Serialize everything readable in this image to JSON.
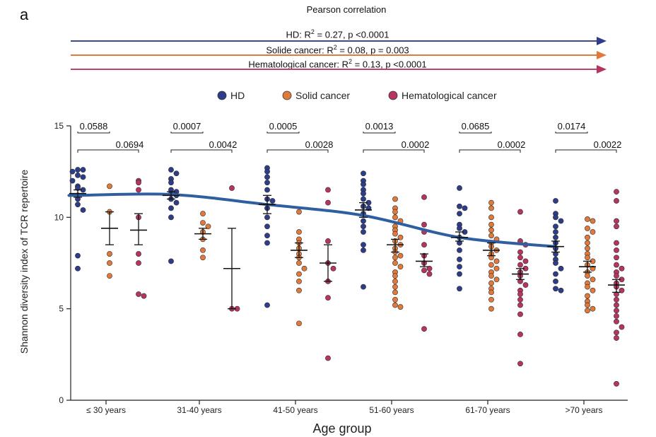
{
  "panel_label": "a",
  "header": {
    "title": "Pearson correlation",
    "stats": [
      {
        "prefix": "HD: R",
        "sup": "2",
        "suffix": " = 0.27,  p <0.0001",
        "color": "#2e3d8a"
      },
      {
        "prefix": "Solide cancer: R",
        "sup": "2",
        "suffix": " = 0.08,  p = 0.003",
        "color": "#e07a3c"
      },
      {
        "prefix": "Hematological cancer: R",
        "sup": "2",
        "suffix": " = 0.13, p <0.0001",
        "color": "#b7345e"
      }
    ]
  },
  "chart_data": {
    "type": "scatter",
    "title": "",
    "xlabel": "Age group",
    "ylabel": "Shannon diversity index of TCR repertoire",
    "ylim": [
      0,
      15
    ],
    "yticks": [
      "0",
      "5",
      "10",
      "15"
    ],
    "categories": [
      "≤ 30 years",
      "31-40 years",
      "41-50 years",
      "51-60 years",
      "61-70 years",
      ">70 years"
    ],
    "legend": {
      "placement": "top-center",
      "entries": [
        "HD",
        "Solid cancer",
        "Hematological cancer"
      ]
    },
    "colors": {
      "HD": "#2e3d8a",
      "Solid cancer": "#e07a3c",
      "Hematological cancer": "#b7345e",
      "trend": "#2f5fa0"
    },
    "series": [
      {
        "name": "HD",
        "groups": [
          {
            "points": [
              12.6,
              12.6,
              12.5,
              12.3,
              12.2,
              12.0,
              11.7,
              11.6,
              11.5,
              11.2,
              11.0,
              10.7,
              10.4,
              7.9,
              7.2
            ],
            "mean": 11.3,
            "err": [
              11.1,
              11.5
            ]
          },
          {
            "points": [
              12.6,
              12.4,
              12.1,
              11.9,
              11.5,
              11.4,
              11.3,
              11.2,
              11.0,
              10.8,
              10.5,
              10.0,
              7.6
            ],
            "mean": 11.2,
            "err": [
              11.0,
              11.4
            ]
          },
          {
            "points": [
              12.7,
              12.5,
              12.2,
              11.9,
              11.5,
              11.0,
              10.9,
              10.5,
              10.0,
              9.5,
              9.0,
              8.6,
              5.2
            ],
            "mean": 10.7,
            "err": [
              10.2,
              11.2
            ]
          },
          {
            "points": [
              12.4,
              12.0,
              11.8,
              11.5,
              11.3,
              11.0,
              10.8,
              10.6,
              10.5,
              10.2,
              9.8,
              9.5,
              9.2,
              8.5,
              8.2,
              6.2
            ],
            "mean": 10.4,
            "err": [
              10.0,
              10.8
            ]
          },
          {
            "points": [
              11.6,
              10.6,
              10.5,
              10.2,
              9.6,
              9.4,
              9.2,
              8.9,
              8.6,
              8.2,
              7.7,
              7.3,
              6.9,
              6.1
            ],
            "mean": 8.9,
            "err": [
              8.7,
              9.2
            ]
          },
          {
            "points": [
              10.9,
              10.2,
              10.0,
              9.8,
              9.5,
              9.2,
              8.9,
              8.6,
              8.3,
              8.0,
              7.7,
              7.5,
              7.2,
              6.9,
              6.5,
              6.1,
              6.0
            ],
            "mean": 8.4,
            "err": [
              8.1,
              8.7
            ]
          }
        ]
      },
      {
        "name": "Solid cancer",
        "groups": [
          {
            "points": [
              11.7,
              10.3,
              8.0,
              7.5,
              6.8
            ],
            "mean": 9.4,
            "err": [
              8.5,
              10.3
            ]
          },
          {
            "points": [
              10.2,
              9.7,
              9.5,
              9.2,
              8.8,
              8.2,
              7.8
            ],
            "mean": 9.1,
            "err": [
              8.8,
              9.4
            ]
          },
          {
            "points": [
              10.3,
              9.2,
              8.8,
              8.6,
              8.3,
              8.0,
              7.8,
              7.5,
              7.2,
              6.9,
              6.5,
              6.0,
              4.2
            ],
            "mean": 8.2,
            "err": [
              7.8,
              8.6
            ]
          },
          {
            "points": [
              11.0,
              10.5,
              10.3,
              10.0,
              9.8,
              9.5,
              9.3,
              9.1,
              8.9,
              8.7,
              8.5,
              8.3,
              8.1,
              7.9,
              7.8,
              7.5,
              7.3,
              7.0,
              6.8,
              6.5,
              6.2,
              5.9,
              5.5,
              5.2,
              5.1
            ],
            "mean": 8.5,
            "err": [
              8.1,
              8.8
            ]
          },
          {
            "points": [
              10.8,
              10.5,
              10.0,
              9.6,
              9.3,
              9.0,
              8.8,
              8.6,
              8.4,
              8.2,
              8.0,
              7.8,
              7.6,
              7.4,
              7.2,
              7.0,
              6.8,
              6.6,
              6.4,
              6.1,
              5.9,
              5.5,
              5.0
            ],
            "mean": 8.2,
            "err": [
              7.9,
              8.6
            ]
          },
          {
            "points": [
              9.9,
              9.8,
              9.4,
              9.2,
              8.9,
              8.6,
              8.3,
              8.0,
              7.8,
              7.6,
              7.4,
              7.2,
              7.0,
              6.8,
              6.6,
              6.4,
              6.2,
              6.0,
              5.7,
              5.4,
              5.2,
              5.0,
              4.9
            ],
            "mean": 7.3,
            "err": [
              7.0,
              7.6
            ]
          }
        ]
      },
      {
        "name": "Hematological cancer",
        "groups": [
          {
            "points": [
              12.0,
              11.9,
              11.5,
              10.0,
              8.0,
              7.5,
              5.8,
              5.7
            ],
            "mean": 9.3,
            "err": [
              8.5,
              10.2
            ]
          },
          {
            "points": [
              11.6,
              5.0,
              5.0
            ],
            "mean": 7.2,
            "err": [
              5.0,
              9.4
            ]
          },
          {
            "points": [
              11.5,
              10.8,
              8.7,
              7.5,
              7.2,
              6.5,
              5.6,
              2.3
            ],
            "mean": 7.5,
            "err": [
              6.5,
              8.5
            ]
          },
          {
            "points": [
              11.1,
              9.6,
              9.2,
              8.5,
              7.9,
              7.5,
              7.2,
              7.1,
              6.9,
              3.9
            ],
            "mean": 7.6,
            "err": [
              7.3,
              8.0
            ]
          },
          {
            "points": [
              10.3,
              8.7,
              8.5,
              8.1,
              7.8,
              7.6,
              7.4,
              7.2,
              7.0,
              6.8,
              6.5,
              6.3,
              6.0,
              5.8,
              5.5,
              5.2,
              4.7,
              3.6,
              2.0
            ],
            "mean": 6.9,
            "err": [
              6.6,
              7.2
            ]
          },
          {
            "points": [
              11.4,
              10.9,
              9.8,
              9.5,
              8.6,
              8.2,
              7.8,
              7.4,
              7.2,
              7.0,
              6.8,
              6.6,
              6.4,
              6.2,
              6.0,
              5.8,
              5.5,
              5.2,
              4.9,
              4.6,
              4.3,
              4.0,
              3.7,
              3.4,
              0.9
            ],
            "mean": 6.3,
            "err": [
              5.9,
              6.6
            ]
          }
        ]
      }
    ],
    "trend": [
      11.2,
      11.25,
      10.7,
      10.1,
      8.9,
      8.4
    ],
    "comparisons": [
      {
        "upper": "0.0588",
        "lower": "0.0694"
      },
      {
        "upper": "0.0007",
        "lower": "0.0042"
      },
      {
        "upper": "0.0005",
        "lower": "0.0028"
      },
      {
        "upper": "0.0013",
        "lower": "0.0002"
      },
      {
        "upper": "0.0685",
        "lower": "0.0002"
      },
      {
        "upper": "0.0174",
        "lower": "0.0022"
      }
    ]
  }
}
